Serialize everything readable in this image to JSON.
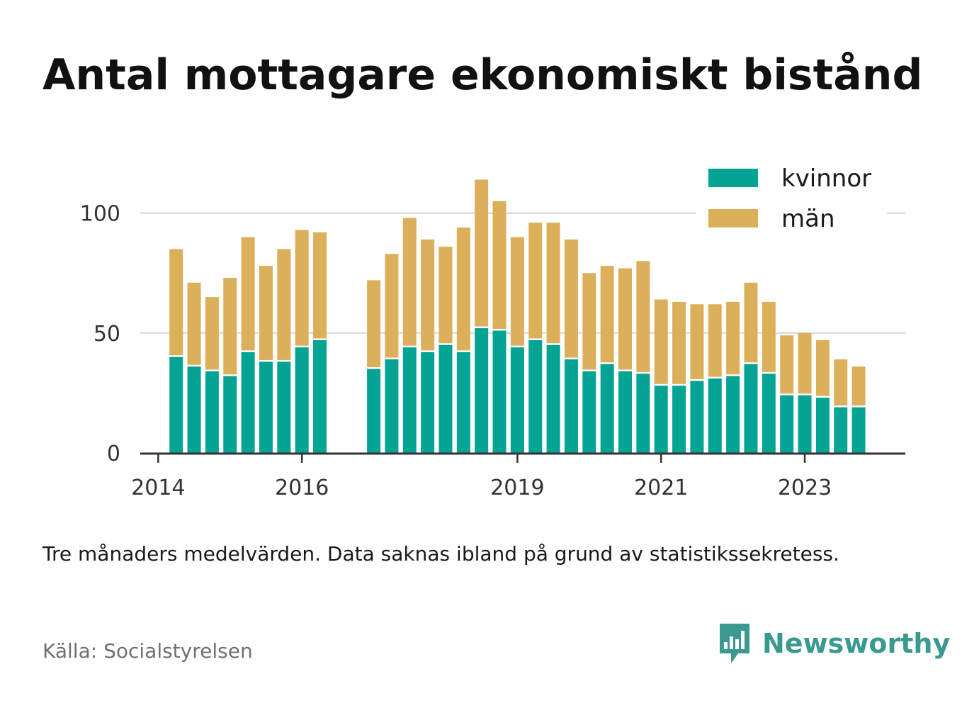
{
  "title": "Antal mottagare ekonomiskt bistånd",
  "note": "Tre månaders medelvärden. Data saknas ibland på grund av statistikssekretess.",
  "source": "Källa: Socialstyrelsen",
  "brand": {
    "name": "Newsworthy",
    "icon": "newsworthy-logo-icon"
  },
  "colors": {
    "kvinnor": "#04a393",
    "man": "#dcb05b",
    "grid": "#dddddd",
    "axis": "#333333",
    "brand": "#3a9a8f"
  },
  "chart_data": {
    "type": "bar",
    "stacked": true,
    "legend_position": "top-right",
    "grid": true,
    "ylim": [
      0,
      115
    ],
    "yticks": [
      0,
      50,
      100
    ],
    "ytick_labels": [
      "0",
      "50",
      "100"
    ],
    "xlim": [
      2013.75,
      2024.4
    ],
    "xticks": [
      2014,
      2016,
      2019,
      2021,
      2023
    ],
    "xtick_labels": [
      "2014",
      "2016",
      "2019",
      "2021",
      "2023"
    ],
    "x": [
      2014.25,
      2014.5,
      2014.75,
      2015.0,
      2015.25,
      2015.5,
      2015.75,
      2016.0,
      2016.25,
      2016.5,
      2017.0,
      2017.25,
      2017.5,
      2017.75,
      2018.0,
      2018.25,
      2018.5,
      2018.75,
      2019.0,
      2019.25,
      2019.5,
      2019.75,
      2020.0,
      2020.25,
      2020.5,
      2020.75,
      2021.0,
      2021.25,
      2021.5,
      2021.75,
      2022.0,
      2022.25,
      2022.5,
      2022.75,
      2023.0,
      2023.25,
      2023.5,
      2023.75
    ],
    "series": [
      {
        "name": "kvinnor",
        "values": [
          40,
          36,
          34,
          32,
          42,
          38,
          38,
          44,
          47,
          0,
          35,
          39,
          44,
          42,
          45,
          42,
          52,
          51,
          44,
          47,
          45,
          39,
          34,
          37,
          34,
          33,
          28,
          28,
          30,
          31,
          32,
          37,
          33,
          24,
          24,
          23,
          19,
          19
        ]
      },
      {
        "name": "män",
        "values": [
          45,
          35,
          31,
          41,
          48,
          40,
          47,
          49,
          45,
          0,
          37,
          44,
          54,
          47,
          41,
          52,
          62,
          54,
          46,
          49,
          51,
          50,
          41,
          41,
          43,
          47,
          36,
          35,
          32,
          31,
          31,
          34,
          30,
          25,
          26,
          24,
          20,
          17
        ]
      }
    ]
  }
}
